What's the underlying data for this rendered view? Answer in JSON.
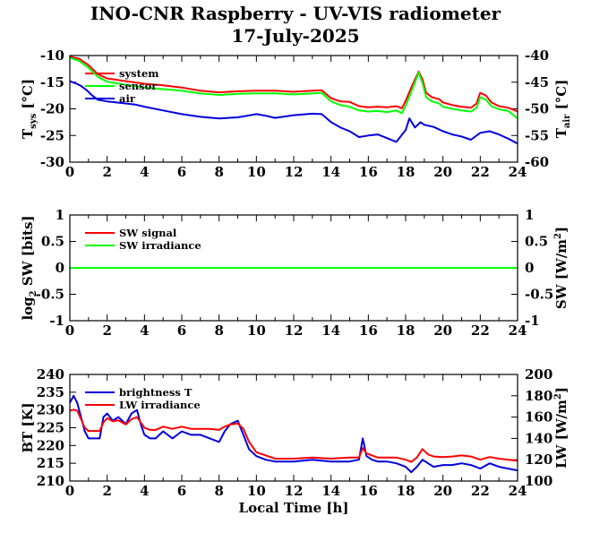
{
  "title": "INO-CNR Raspberry - UV-VIS radiometer",
  "subtitle": "17-July-2025",
  "chart_data": [
    {
      "type": "line",
      "panel": "temperature",
      "ylabel_left": "T",
      "ylabel_left_sub": "sys",
      "ylabel_left_unit": " [°C]",
      "ylabel_right": "T",
      "ylabel_right_sub": "air",
      "ylabel_right_unit": " [°C]",
      "xlim": [
        0,
        24
      ],
      "xticks": [
        "0",
        "2",
        "4",
        "6",
        "8",
        "10",
        "12",
        "14",
        "16",
        "18",
        "20",
        "22",
        "24"
      ],
      "ylim": [
        -30,
        -10
      ],
      "yticks": [
        "-10",
        "-15",
        "-20",
        "-25",
        "-30"
      ],
      "ylim_right": [
        -60,
        -40
      ],
      "yticks_right": [
        "-40",
        "-45",
        "-50",
        "-55",
        "-60"
      ],
      "legend": "top-left",
      "series": [
        {
          "name": "system",
          "color": "#ff0000",
          "axis": "left",
          "x": [
            0,
            0.5,
            1,
            1.5,
            2,
            3,
            4,
            5,
            6,
            7,
            8,
            9,
            10,
            11,
            12,
            13,
            13.5,
            14,
            14.5,
            15,
            15.5,
            16,
            16.5,
            17,
            17.5,
            17.8,
            18,
            18.3,
            18.5,
            18.7,
            18.9,
            19.1,
            19.4,
            19.8,
            20,
            20.5,
            21,
            21.5,
            21.8,
            22,
            22.3,
            22.6,
            23,
            23.5,
            24
          ],
          "y": [
            -10.2,
            -10.6,
            -11.8,
            -13.5,
            -14.3,
            -14.8,
            -15.3,
            -15.6,
            -16.0,
            -16.6,
            -16.9,
            -16.7,
            -16.6,
            -16.6,
            -16.8,
            -16.6,
            -16.5,
            -18.0,
            -18.6,
            -18.7,
            -19.5,
            -19.7,
            -19.6,
            -19.7,
            -19.5,
            -19.9,
            -18.5,
            -16.0,
            -14.5,
            -13.0,
            -14.5,
            -17.0,
            -17.8,
            -18.2,
            -18.8,
            -19.3,
            -19.6,
            -19.8,
            -19.0,
            -17.0,
            -17.5,
            -18.8,
            -19.5,
            -19.8,
            -20.5
          ]
        },
        {
          "name": "sensor",
          "color": "#00ff00",
          "axis": "left",
          "x": [
            0,
            0.5,
            1,
            1.5,
            2,
            3,
            4,
            5,
            6,
            7,
            8,
            9,
            10,
            11,
            12,
            13,
            13.5,
            14,
            14.5,
            15,
            15.5,
            16,
            16.5,
            17,
            17.5,
            17.8,
            18,
            18.3,
            18.5,
            18.7,
            18.9,
            19.1,
            19.4,
            19.8,
            20,
            20.5,
            21,
            21.5,
            21.8,
            22,
            22.3,
            22.6,
            23,
            23.5,
            24
          ],
          "y": [
            -10.4,
            -11.0,
            -12.3,
            -14.0,
            -14.9,
            -15.5,
            -16.0,
            -16.3,
            -16.6,
            -17.1,
            -17.4,
            -17.2,
            -17.1,
            -17.1,
            -17.3,
            -17.1,
            -17.0,
            -18.6,
            -19.3,
            -19.6,
            -20.3,
            -20.5,
            -20.4,
            -20.6,
            -20.3,
            -20.8,
            -19.4,
            -16.8,
            -15.0,
            -13.2,
            -15.2,
            -17.8,
            -18.6,
            -19.0,
            -19.6,
            -20.0,
            -20.3,
            -20.5,
            -19.8,
            -17.8,
            -18.3,
            -19.5,
            -20.1,
            -20.4,
            -21.8
          ]
        },
        {
          "name": "air",
          "color": "#0000dd",
          "axis": "right",
          "x": [
            0,
            0.3,
            0.6,
            0.9,
            1.2,
            1.5,
            2,
            2.5,
            3,
            3.5,
            4,
            5,
            6,
            7,
            8,
            9,
            10,
            10.5,
            11,
            12,
            13,
            13.5,
            14,
            14.5,
            15,
            15.5,
            16,
            16.5,
            17,
            17.5,
            18,
            18.2,
            18.5,
            18.8,
            19,
            19.5,
            20,
            20.5,
            21,
            21.5,
            22,
            22.5,
            23,
            23.5,
            24
          ],
          "y": [
            -44.8,
            -45.2,
            -45.7,
            -46.5,
            -47.5,
            -48.3,
            -48.6,
            -48.8,
            -49.0,
            -49.2,
            -49.6,
            -50.3,
            -51.0,
            -51.5,
            -51.8,
            -51.6,
            -51.0,
            -51.3,
            -51.7,
            -51.2,
            -50.9,
            -51.0,
            -52.5,
            -53.5,
            -54.2,
            -55.3,
            -55.0,
            -54.8,
            -55.5,
            -56.2,
            -54.0,
            -51.8,
            -53.5,
            -52.5,
            -53.0,
            -53.4,
            -54.2,
            -54.8,
            -55.2,
            -55.8,
            -54.5,
            -54.2,
            -54.8,
            -55.6,
            -56.5
          ]
        }
      ]
    },
    {
      "type": "line",
      "panel": "shortwave",
      "ylabel_left": "log",
      "ylabel_left_sub": "2",
      "ylabel_left_unit": " SW [bits]",
      "ylabel_right": "SW [W/m",
      "ylabel_right_sup": "2",
      "ylabel_right_unit": "]",
      "xlim": [
        0,
        24
      ],
      "xticks": [
        "0",
        "2",
        "4",
        "6",
        "8",
        "10",
        "12",
        "14",
        "16",
        "18",
        "20",
        "22",
        "24"
      ],
      "ylim": [
        -1,
        1
      ],
      "yticks": [
        "1",
        "0.5",
        "0",
        "-0.5",
        "-1"
      ],
      "ylim_right": [
        -1,
        1
      ],
      "yticks_right": [
        "1",
        "0.5",
        "0",
        "-0.5",
        "-1"
      ],
      "legend": "top-left",
      "series": [
        {
          "name": "SW signal",
          "color": "#ff0000",
          "axis": "left",
          "x": [
            0,
            24
          ],
          "y": [
            0,
            0
          ]
        },
        {
          "name": "SW irradiance",
          "color": "#00ff00",
          "axis": "right",
          "x": [
            0,
            24
          ],
          "y": [
            0,
            0
          ]
        }
      ]
    },
    {
      "type": "line",
      "panel": "longwave",
      "ylabel_left": "BT [K]",
      "ylabel_right": "LW [W/m",
      "ylabel_right_sup": "2",
      "ylabel_right_unit": "]",
      "xlabel": "Local Time [h]",
      "xlim": [
        0,
        24
      ],
      "xticks": [
        "0",
        "2",
        "4",
        "6",
        "8",
        "10",
        "12",
        "14",
        "16",
        "18",
        "20",
        "22",
        "24"
      ],
      "ylim": [
        210,
        240
      ],
      "yticks": [
        "240",
        "235",
        "230",
        "225",
        "220",
        "215",
        "210"
      ],
      "ylim_right": [
        100,
        200
      ],
      "yticks_right": [
        "200",
        "180",
        "160",
        "140",
        "120",
        "100"
      ],
      "legend": "top-left",
      "series": [
        {
          "name": "brightness T",
          "color": "#0000dd",
          "axis": "left",
          "x": [
            0,
            0.2,
            0.4,
            0.6,
            0.8,
            1,
            1.3,
            1.6,
            1.8,
            2,
            2.3,
            2.6,
            3,
            3.3,
            3.6,
            3.8,
            4,
            4.3,
            4.6,
            5,
            5.5,
            6,
            6.5,
            7,
            7.5,
            8,
            8.3,
            8.6,
            9,
            9.3,
            9.6,
            10,
            10.5,
            11,
            12,
            13,
            14,
            15,
            15.5,
            15.7,
            15.9,
            16.2,
            16.5,
            17,
            17.5,
            18,
            18.3,
            18.6,
            18.9,
            19.2,
            19.5,
            20,
            20.5,
            21,
            21.5,
            22,
            22.5,
            23,
            23.5,
            24
          ],
          "y": [
            232,
            234,
            232,
            228,
            224,
            222,
            222,
            222,
            228,
            229,
            227,
            228,
            226,
            229,
            230,
            226,
            223,
            222,
            222,
            224,
            222,
            224,
            223,
            223,
            222,
            221,
            224,
            226,
            227,
            223,
            219,
            217,
            216,
            215.5,
            215.5,
            216,
            215.5,
            215.5,
            216,
            222,
            217,
            216,
            215.5,
            215.5,
            215,
            214,
            212.5,
            214,
            216,
            215,
            214,
            214.5,
            214.5,
            215,
            214.5,
            213.5,
            215,
            214,
            213.5,
            213
          ]
        },
        {
          "name": "LW irradiance",
          "color": "#ff0000",
          "axis": "right",
          "x": [
            0,
            0.2,
            0.4,
            0.6,
            0.8,
            1,
            1.3,
            1.6,
            1.8,
            2,
            2.3,
            2.6,
            3,
            3.3,
            3.6,
            3.8,
            4,
            4.3,
            4.6,
            5,
            5.5,
            6,
            6.5,
            7,
            7.5,
            8,
            8.3,
            8.6,
            9,
            9.3,
            9.6,
            10,
            10.5,
            11,
            12,
            13,
            14,
            15,
            15.5,
            15.7,
            15.9,
            16.2,
            16.5,
            17,
            17.5,
            18,
            18.3,
            18.6,
            18.9,
            19.2,
            19.5,
            20,
            20.5,
            21,
            21.5,
            22,
            22.5,
            23,
            23.5,
            24
          ],
          "y": [
            166,
            167,
            166,
            158,
            150,
            147,
            147,
            147,
            155,
            159,
            156,
            157,
            153,
            158,
            160,
            155,
            150,
            148,
            148,
            151,
            149,
            151,
            149,
            149,
            149,
            148,
            151,
            153,
            154,
            149,
            137,
            127,
            124,
            121,
            121,
            122,
            121,
            122,
            122,
            131,
            126,
            124,
            122,
            122,
            122,
            120,
            118,
            122,
            130,
            125,
            123,
            122.5,
            123,
            124,
            123,
            120,
            122.5,
            121,
            120,
            119
          ]
        }
      ]
    }
  ]
}
